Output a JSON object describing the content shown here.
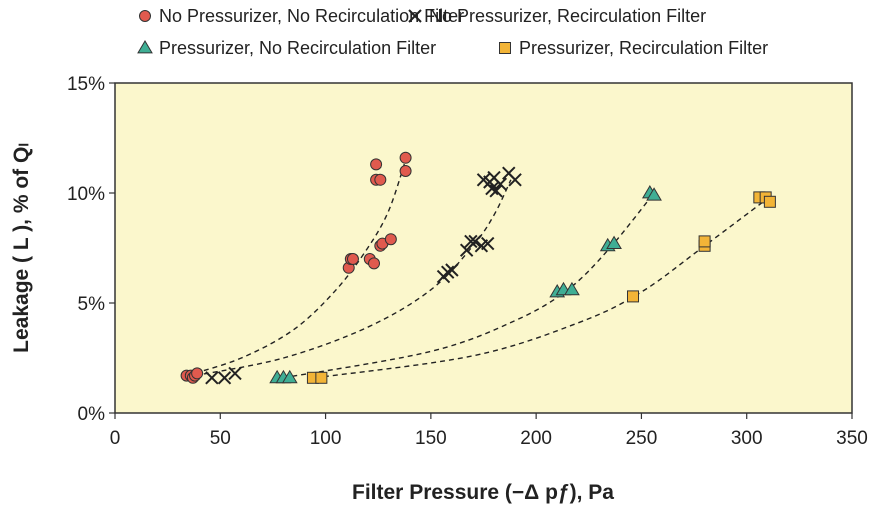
{
  "chart_data": {
    "type": "scatter",
    "title": "",
    "xlabel": "Filter Pressure (−Δ pƒ), Pa",
    "ylabel": "Leakage ( L ), % of Qₗ",
    "xlim": [
      0,
      350
    ],
    "ylim": [
      0,
      15
    ],
    "x_ticks": [
      0,
      50,
      100,
      150,
      200,
      250,
      300,
      350
    ],
    "y_ticks": [
      0,
      5,
      10,
      15
    ],
    "y_tick_labels": [
      "0%",
      "5%",
      "10%",
      "15%"
    ],
    "grid": false,
    "legend_position": "top",
    "plot_background": "#fbf7cc",
    "series": [
      {
        "name": "No Pressurizer, No Recirculation Filter",
        "marker": "circle",
        "color": "#e05a4e",
        "points": [
          [
            34,
            1.7
          ],
          [
            36,
            1.7
          ],
          [
            37,
            1.6
          ],
          [
            38,
            1.7
          ],
          [
            39,
            1.8
          ],
          [
            111,
            6.6
          ],
          [
            112,
            7.0
          ],
          [
            113,
            7.0
          ],
          [
            121,
            7.0
          ],
          [
            123,
            6.8
          ],
          [
            124,
            11.3
          ],
          [
            124,
            10.6
          ],
          [
            126,
            10.6
          ],
          [
            126,
            7.6
          ],
          [
            127,
            7.7
          ],
          [
            131,
            7.9
          ],
          [
            138,
            11.6
          ],
          [
            138,
            11.0
          ]
        ],
        "trend": [
          [
            34,
            1.7
          ],
          [
            60,
            2.5
          ],
          [
            85,
            3.8
          ],
          [
            105,
            5.6
          ],
          [
            120,
            7.5
          ],
          [
            130,
            9.2
          ],
          [
            138,
            11.5
          ]
        ]
      },
      {
        "name": "No Pressurizer, Recirculation Filter",
        "marker": "x",
        "color": "#222222",
        "points": [
          [
            46,
            1.6
          ],
          [
            52,
            1.6
          ],
          [
            57,
            1.8
          ],
          [
            156,
            6.2
          ],
          [
            158,
            6.4
          ],
          [
            160,
            6.5
          ],
          [
            167,
            7.4
          ],
          [
            169,
            7.8
          ],
          [
            171,
            7.8
          ],
          [
            174,
            7.6
          ],
          [
            177,
            7.7
          ],
          [
            175,
            10.6
          ],
          [
            178,
            10.5
          ],
          [
            180,
            10.7
          ],
          [
            179,
            10.2
          ],
          [
            181,
            10.1
          ],
          [
            183,
            10.4
          ],
          [
            187,
            10.9
          ],
          [
            190,
            10.6
          ]
        ],
        "trend": [
          [
            38,
            1.7
          ],
          [
            80,
            2.5
          ],
          [
            120,
            3.9
          ],
          [
            150,
            5.6
          ],
          [
            170,
            7.6
          ],
          [
            180,
            9.0
          ],
          [
            188,
            10.6
          ]
        ]
      },
      {
        "name": "Pressurizer, No Recirculation Filter",
        "marker": "triangle",
        "color": "#3fae94",
        "points": [
          [
            77,
            1.6
          ],
          [
            80,
            1.6
          ],
          [
            83,
            1.6
          ],
          [
            210,
            5.5
          ],
          [
            213,
            5.6
          ],
          [
            217,
            5.6
          ],
          [
            234,
            7.6
          ],
          [
            237,
            7.7
          ],
          [
            254,
            10.0
          ],
          [
            256,
            9.9
          ]
        ],
        "trend": [
          [
            80,
            1.6
          ],
          [
            150,
            2.8
          ],
          [
            190,
            4.2
          ],
          [
            215,
            5.6
          ],
          [
            235,
            7.5
          ],
          [
            256,
            10.0
          ]
        ]
      },
      {
        "name": "Pressurizer, Recirculation Filter",
        "marker": "square",
        "color": "#f2b437",
        "points": [
          [
            94,
            1.6
          ],
          [
            98,
            1.6
          ],
          [
            246,
            5.3
          ],
          [
            280,
            7.6
          ],
          [
            280,
            7.8
          ],
          [
            306,
            9.8
          ],
          [
            309,
            9.8
          ],
          [
            311,
            9.6
          ]
        ],
        "trend": [
          [
            95,
            1.6
          ],
          [
            170,
            2.6
          ],
          [
            220,
            4.1
          ],
          [
            250,
            5.5
          ],
          [
            280,
            7.6
          ],
          [
            312,
            9.9
          ]
        ]
      }
    ]
  }
}
